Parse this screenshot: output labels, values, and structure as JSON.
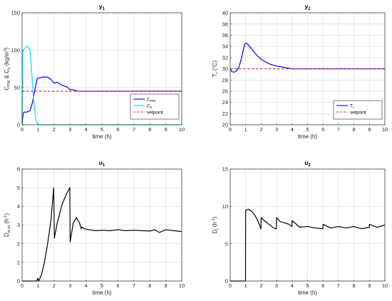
{
  "chart_data": [
    {
      "type": "line",
      "title_main": "y",
      "title_sub": "1",
      "xlabel": "time (h)",
      "ylabel": "C_PM & C_s (kg/m^3)",
      "ylabel_parts": {
        "a": "C",
        "a_sub": "PM",
        "b": " & C",
        "b_sub": "s",
        "c": " (kg/m",
        "c_sup": "3",
        "d": ")"
      },
      "xlim": [
        0,
        10
      ],
      "ylim": [
        0,
        150
      ],
      "xticks": [
        0,
        1,
        2,
        3,
        4,
        5,
        6,
        7,
        8,
        9,
        10
      ],
      "yticks": [
        0,
        50,
        100,
        150
      ],
      "grid": true,
      "legend_position": "bottom-right",
      "series": [
        {
          "name": "C_PM",
          "name_main": "C",
          "name_sub": "PM",
          "color": "#0000ff",
          "style": "solid",
          "x": [
            0,
            0.05,
            0.1,
            0.3,
            0.5,
            0.65,
            0.8,
            0.95,
            1.1,
            1.3,
            1.6,
            1.8,
            2.0,
            2.2,
            2.5,
            2.8,
            3.0,
            3.2,
            3.5,
            3.7,
            4,
            5,
            6,
            7,
            8,
            9,
            10
          ],
          "y": [
            0,
            12,
            17,
            17,
            19,
            30,
            47,
            62,
            63,
            64,
            64,
            61,
            56,
            57,
            53,
            51,
            47,
            47,
            45,
            45,
            45,
            45,
            45,
            45,
            45,
            45,
            45
          ]
        },
        {
          "name": "C_s",
          "name_main": "C",
          "name_sub": "s",
          "color": "#00e5ee",
          "style": "solid",
          "x": [
            0,
            0.05,
            0.1,
            0.2,
            0.3,
            0.4,
            0.5,
            0.55,
            0.65,
            0.75,
            0.85,
            0.95,
            1.0,
            1.1,
            2,
            4,
            6,
            8,
            10
          ],
          "y": [
            0,
            98,
            101,
            103,
            105,
            104,
            100,
            85,
            55,
            25,
            8,
            2,
            0,
            0,
            0,
            0,
            0,
            0,
            0
          ]
        },
        {
          "name": "setpoint",
          "color": "#e02020",
          "style": "dashed",
          "x": [
            0,
            10
          ],
          "y": [
            45,
            45
          ]
        }
      ]
    },
    {
      "type": "line",
      "title_main": "y",
      "title_sub": "2",
      "xlabel": "time (h)",
      "ylabel": "T_r (°C)",
      "ylabel_parts": {
        "a": "T",
        "a_sub": "r",
        "b": " (°C)"
      },
      "xlim": [
        0,
        10
      ],
      "ylim": [
        20,
        40
      ],
      "xticks": [
        0,
        1,
        2,
        3,
        4,
        5,
        6,
        7,
        8,
        9,
        10
      ],
      "yticks": [
        20,
        22,
        24,
        26,
        28,
        30,
        32,
        34,
        36,
        38,
        40
      ],
      "grid": true,
      "legend_position": "bottom-right",
      "series": [
        {
          "name": "T_r",
          "name_main": "T",
          "name_sub": "r",
          "color": "#0000ff",
          "style": "solid",
          "x": [
            0,
            0.1,
            0.25,
            0.4,
            0.55,
            0.7,
            0.85,
            0.95,
            1.05,
            1.2,
            1.4,
            1.6,
            1.8,
            2,
            2.3,
            2.6,
            3,
            3.4,
            3.8,
            4,
            5,
            6,
            7,
            8,
            9,
            10
          ],
          "y": [
            30,
            29.5,
            29.4,
            29.6,
            30.2,
            31.6,
            33.4,
            34.5,
            34.6,
            34.2,
            33.5,
            32.8,
            32.2,
            31.7,
            31.2,
            30.8,
            30.5,
            30.3,
            30.1,
            30,
            30,
            30,
            30,
            30,
            30,
            30
          ]
        },
        {
          "name": "setpoint",
          "color": "#e02020",
          "style": "dashed",
          "x": [
            0,
            10
          ],
          "y": [
            30,
            30
          ]
        }
      ]
    },
    {
      "type": "line",
      "title_main": "u",
      "title_sub": "1",
      "xlabel": "time (h)",
      "ylabel": "D_m,in (h^-1)",
      "ylabel_parts": {
        "a": "D",
        "a_sub": "m,in",
        "b": " (h",
        "b_sup": "-1",
        "c": ")"
      },
      "xlim": [
        0,
        10
      ],
      "ylim": [
        0,
        6
      ],
      "xticks": [
        0,
        1,
        2,
        3,
        4,
        5,
        6,
        7,
        8,
        9,
        10
      ],
      "yticks": [
        0,
        1,
        2,
        3,
        4,
        5,
        6
      ],
      "grid": true,
      "series": [
        {
          "name": "",
          "color": "#000000",
          "style": "solid",
          "x": [
            0,
            0.9,
            1.0,
            1.02,
            1.05,
            1.2,
            1.4,
            1.6,
            1.8,
            1.98,
            2.02,
            2.2,
            2.5,
            2.8,
            2.99,
            3.01,
            3.2,
            3.4,
            3.6,
            3.7,
            3.75,
            3.9,
            4.2,
            4.6,
            5,
            5.5,
            6,
            6.5,
            7,
            7.5,
            8,
            8.3,
            8.6,
            9,
            9.5,
            10
          ],
          "y": [
            0,
            0,
            0.15,
            0,
            0.02,
            0.3,
            1.0,
            2.0,
            3.2,
            5.0,
            2.3,
            3.1,
            4.1,
            4.7,
            5.0,
            2.1,
            3.1,
            3.4,
            3.1,
            2.8,
            2.9,
            2.8,
            2.75,
            2.7,
            2.72,
            2.7,
            2.75,
            2.7,
            2.72,
            2.7,
            2.68,
            2.75,
            2.6,
            2.75,
            2.7,
            2.65
          ]
        }
      ]
    },
    {
      "type": "line",
      "title_main": "u",
      "title_sub": "2",
      "xlabel": "time (h)",
      "ylabel": "D_j (h^-1)",
      "ylabel_parts": {
        "a": "D",
        "a_sub": "j",
        "b": " (h",
        "b_sup": "-1",
        "c": ")"
      },
      "xlim": [
        0,
        10
      ],
      "ylim": [
        0,
        15
      ],
      "xticks": [
        0,
        1,
        2,
        3,
        4,
        5,
        6,
        7,
        8,
        9,
        10
      ],
      "yticks": [
        0,
        5,
        10,
        15
      ],
      "grid": true,
      "series": [
        {
          "name": "",
          "color": "#000000",
          "style": "solid",
          "x": [
            0,
            0.99,
            1.0,
            1.2,
            1.4,
            1.6,
            1.8,
            1.99,
            2.0,
            2.2,
            2.5,
            2.8,
            2.99,
            3.0,
            3.2,
            3.5,
            3.8,
            3.99,
            4.0,
            4.5,
            5,
            5.5,
            5.99,
            6.0,
            6.5,
            7,
            7.5,
            8,
            8.5,
            8.99,
            9.0,
            9.5,
            10
          ],
          "y": [
            0,
            0,
            9.5,
            9.6,
            9.3,
            8.8,
            8.0,
            7.0,
            8.5,
            8.1,
            7.6,
            7.1,
            7.0,
            8.5,
            8.0,
            7.8,
            7.6,
            7.3,
            8.1,
            7.2,
            7.3,
            7.1,
            7.0,
            7.6,
            7.1,
            7.3,
            7.1,
            7.3,
            7.0,
            7.2,
            7.6,
            7.2,
            7.5
          ]
        }
      ]
    }
  ],
  "legend_setpoint": "setpoint"
}
